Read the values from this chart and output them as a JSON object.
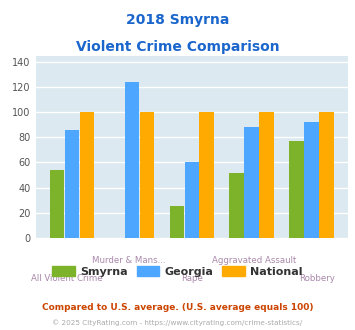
{
  "title_line1": "2018 Smyrna",
  "title_line2": "Violent Crime Comparison",
  "categories_top": [
    "",
    "Murder & Mans...",
    "",
    "Aggravated Assault",
    ""
  ],
  "categories_bot": [
    "All Violent Crime",
    "",
    "Rape",
    "",
    "Robbery"
  ],
  "smyrna": [
    54,
    0,
    25,
    52,
    77
  ],
  "georgia": [
    86,
    124,
    60,
    88,
    92
  ],
  "national": [
    100,
    100,
    100,
    100,
    100
  ],
  "smyrna_color": "#7db32a",
  "georgia_color": "#4da6ff",
  "national_color": "#ffaa00",
  "ylim": [
    0,
    145
  ],
  "yticks": [
    0,
    20,
    40,
    60,
    80,
    100,
    120,
    140
  ],
  "bg_color": "#dce9f0",
  "grid_color": "#ffffff",
  "title_color": "#1a66cc",
  "xlabel_color_top": "#aa88aa",
  "xlabel_color_bot": "#aa88aa",
  "footnote1": "Compared to U.S. average. (U.S. average equals 100)",
  "footnote2": "© 2025 CityRating.com - https://www.cityrating.com/crime-statistics/",
  "footnote1_color": "#cc4400",
  "footnote2_color": "#aaaaaa",
  "footnote2_url_color": "#4488cc"
}
